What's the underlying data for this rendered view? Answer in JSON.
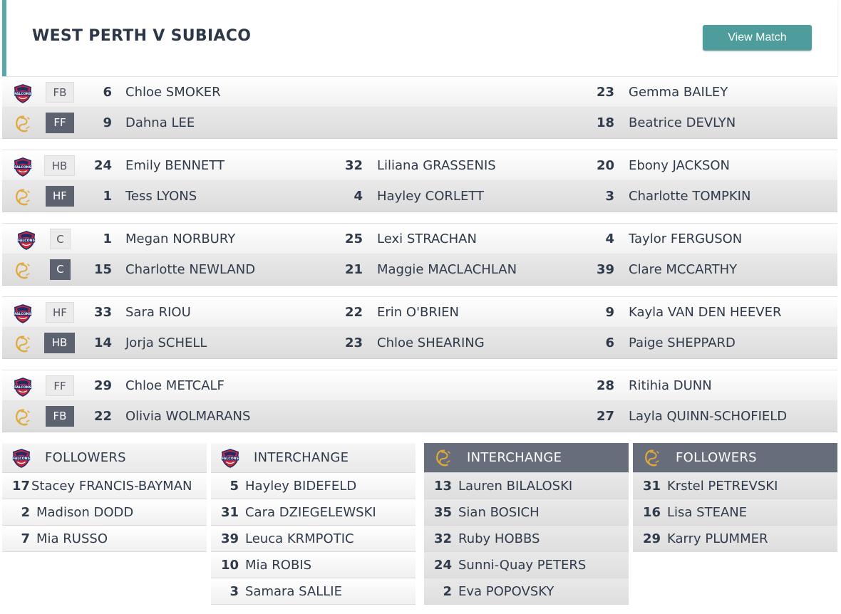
{
  "match": {
    "title": "WEST PERTH V SUBIACO",
    "view_button": "View Match"
  },
  "colors": {
    "accent": "#4e9c9c",
    "away_badge": "#5c6270",
    "away_header": "#676d7a"
  },
  "teams": {
    "home": {
      "logo_icon": "falcons-logo-icon",
      "logo_text": "FALCONS"
    },
    "away": {
      "logo_icon": "subiaco-sc-logo-icon",
      "logo_text": "SC"
    }
  },
  "lines": [
    {
      "home": {
        "pos": "FB",
        "players": [
          {
            "num": "6",
            "name": "Chloe SMOKER"
          },
          null,
          {
            "num": "23",
            "name": "Gemma BAILEY"
          }
        ]
      },
      "away": {
        "pos": "FF",
        "players": [
          {
            "num": "9",
            "name": "Dahna LEE"
          },
          null,
          {
            "num": "18",
            "name": "Beatrice DEVLYN"
          }
        ]
      }
    },
    {
      "home": {
        "pos": "HB",
        "players": [
          {
            "num": "24",
            "name": "Emily BENNETT"
          },
          {
            "num": "32",
            "name": "Liliana GRASSENIS"
          },
          {
            "num": "20",
            "name": "Ebony JACKSON"
          }
        ]
      },
      "away": {
        "pos": "HF",
        "players": [
          {
            "num": "1",
            "name": "Tess LYONS"
          },
          {
            "num": "4",
            "name": "Hayley CORLETT"
          },
          {
            "num": "3",
            "name": "Charlotte TOMPKIN"
          }
        ]
      }
    },
    {
      "home": {
        "pos": "C",
        "players": [
          {
            "num": "1",
            "name": "Megan NORBURY"
          },
          {
            "num": "25",
            "name": "Lexi STRACHAN"
          },
          {
            "num": "4",
            "name": "Taylor FERGUSON"
          }
        ]
      },
      "away": {
        "pos": "C",
        "players": [
          {
            "num": "15",
            "name": "Charlotte NEWLAND"
          },
          {
            "num": "21",
            "name": "Maggie MACLACHLAN"
          },
          {
            "num": "39",
            "name": "Clare MCCARTHY"
          }
        ]
      }
    },
    {
      "home": {
        "pos": "HF",
        "players": [
          {
            "num": "33",
            "name": "Sara RIOU"
          },
          {
            "num": "22",
            "name": "Erin O'BRIEN"
          },
          {
            "num": "9",
            "name": "Kayla VAN DEN HEEVER"
          }
        ]
      },
      "away": {
        "pos": "HB",
        "players": [
          {
            "num": "14",
            "name": "Jorja SCHELL"
          },
          {
            "num": "23",
            "name": "Chloe SHEARING"
          },
          {
            "num": "6",
            "name": "Paige SHEPPARD"
          }
        ]
      }
    },
    {
      "home": {
        "pos": "FF",
        "players": [
          {
            "num": "29",
            "name": "Chloe METCALF"
          },
          null,
          {
            "num": "28",
            "name": "Ritihia DUNN"
          }
        ]
      },
      "away": {
        "pos": "FB",
        "players": [
          {
            "num": "22",
            "name": "Olivia WOLMARANS"
          },
          null,
          {
            "num": "27",
            "name": "Layla QUINN-SCHOFIELD"
          }
        ]
      }
    }
  ],
  "benches": [
    {
      "team": "home",
      "title": "FOLLOWERS",
      "players": [
        {
          "num": "17",
          "name": "Stacey FRANCIS-BAYMAN"
        },
        {
          "num": "2",
          "name": "Madison DODD"
        },
        {
          "num": "7",
          "name": "Mia RUSSO"
        }
      ]
    },
    {
      "team": "home",
      "title": "INTERCHANGE",
      "players": [
        {
          "num": "5",
          "name": "Hayley BIDEFELD"
        },
        {
          "num": "31",
          "name": "Cara DZIEGELEWSKI"
        },
        {
          "num": "39",
          "name": "Leuca KRMPOTIC"
        },
        {
          "num": "10",
          "name": "Mia ROBIS"
        },
        {
          "num": "3",
          "name": "Samara SALLIE"
        }
      ]
    },
    {
      "team": "away",
      "title": "INTERCHANGE",
      "players": [
        {
          "num": "13",
          "name": "Lauren BILALOSKI"
        },
        {
          "num": "35",
          "name": "Sian BOSICH"
        },
        {
          "num": "32",
          "name": "Ruby HOBBS"
        },
        {
          "num": "24",
          "name": "Sunni-Quay PETERS"
        },
        {
          "num": "2",
          "name": "Eva POPOVSKY"
        }
      ]
    },
    {
      "team": "away",
      "title": "FOLLOWERS",
      "players": [
        {
          "num": "31",
          "name": "Krstel PETREVSKI"
        },
        {
          "num": "16",
          "name": "Lisa STEANE"
        },
        {
          "num": "29",
          "name": "Karry PLUMMER"
        }
      ]
    }
  ]
}
